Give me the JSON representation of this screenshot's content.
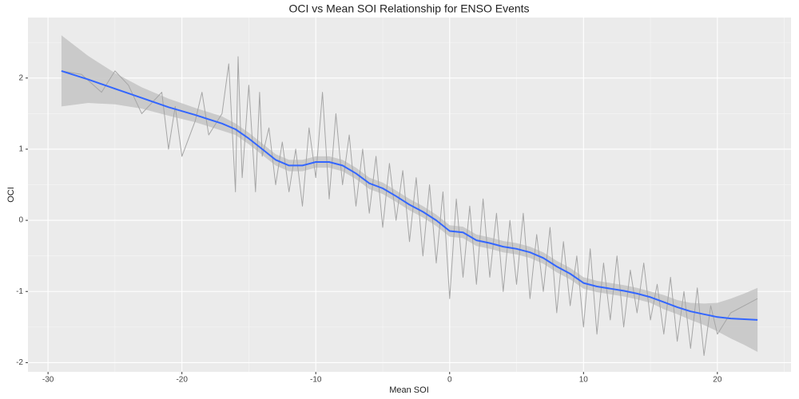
{
  "chart_data": {
    "type": "line",
    "title": "OCI vs Mean SOI Relationship for ENSO Events",
    "x_label": "Mean SOI",
    "y_label": "OCI",
    "xlim": [
      -31.5,
      25.5
    ],
    "ylim": [
      -2.13,
      2.85
    ],
    "xticks": [
      -30,
      -20,
      -10,
      0,
      10,
      20
    ],
    "yticks": [
      -2,
      -1,
      0,
      1,
      2
    ],
    "grid": true,
    "background": "#ebebeb",
    "series": [
      {
        "color": "#a6a6a6",
        "x": [
          -29,
          -27.5,
          -26,
          -25,
          -24,
          -23,
          -21.5,
          -21,
          -20.5,
          -20,
          -19,
          -18.5,
          -18,
          -17,
          -16.5,
          -16,
          -15.8,
          -15.5,
          -15,
          -14.5,
          -14.2,
          -14,
          -13.5,
          -13,
          -12.5,
          -12,
          -11.5,
          -11,
          -10.5,
          -10,
          -9.5,
          -9,
          -8.5,
          -8,
          -7.5,
          -7,
          -6.5,
          -6,
          -5.5,
          -5,
          -4.5,
          -4,
          -3.5,
          -3,
          -2.5,
          -2,
          -1.5,
          -1,
          -0.5,
          0,
          0.5,
          1,
          1.5,
          2,
          2.5,
          3,
          3.5,
          4,
          4.5,
          5,
          5.5,
          6,
          6.5,
          7,
          7.5,
          8,
          8.5,
          9,
          9.5,
          10,
          10.5,
          11,
          11.5,
          12,
          12.5,
          13,
          13.5,
          14,
          14.5,
          15,
          15.5,
          16,
          16.5,
          17,
          17.5,
          18,
          18.5,
          19,
          19.5,
          20,
          21,
          22,
          23
        ],
        "values": [
          2.1,
          2.05,
          1.8,
          2.1,
          1.9,
          1.5,
          1.8,
          1.0,
          1.6,
          0.9,
          1.4,
          1.8,
          1.2,
          1.5,
          2.2,
          0.4,
          2.3,
          0.6,
          1.9,
          0.4,
          1.8,
          0.9,
          1.3,
          0.5,
          1.1,
          0.4,
          1.0,
          0.2,
          1.3,
          0.6,
          1.8,
          0.3,
          1.5,
          0.5,
          1.2,
          0.2,
          1.0,
          0.1,
          0.9,
          -0.1,
          0.8,
          0.0,
          0.7,
          -0.3,
          0.6,
          -0.5,
          0.5,
          -0.6,
          0.4,
          -1.1,
          0.3,
          -0.8,
          0.2,
          -0.9,
          0.3,
          -0.8,
          0.1,
          -1.0,
          0.0,
          -0.9,
          0.1,
          -1.1,
          -0.2,
          -1.0,
          -0.1,
          -1.3,
          -0.3,
          -1.2,
          -0.5,
          -1.5,
          -0.4,
          -1.6,
          -0.6,
          -1.4,
          -0.5,
          -1.5,
          -0.7,
          -1.3,
          -0.6,
          -1.4,
          -0.9,
          -1.6,
          -0.8,
          -1.7,
          -1.0,
          -1.8,
          -0.95,
          -1.9,
          -1.2,
          -1.6,
          -1.3,
          -1.2,
          -1.1
        ]
      },
      {
        "color": "#3366ff",
        "band_color": "#c4c4c4",
        "x": [
          -29,
          -27,
          -25,
          -23,
          -21,
          -19,
          -17,
          -16,
          -15,
          -14,
          -13,
          -12,
          -11,
          -10,
          -9,
          -8,
          -7,
          -6,
          -5,
          -4,
          -3,
          -2,
          -1,
          0,
          1,
          2,
          3,
          4,
          5,
          6,
          7,
          8,
          9,
          10,
          11,
          12,
          13,
          14,
          15,
          16,
          17,
          18,
          19,
          20,
          21,
          22,
          23
        ],
        "values": [
          2.1,
          1.98,
          1.85,
          1.72,
          1.59,
          1.48,
          1.36,
          1.28,
          1.15,
          1.0,
          0.85,
          0.77,
          0.77,
          0.82,
          0.82,
          0.77,
          0.66,
          0.52,
          0.45,
          0.34,
          0.22,
          0.12,
          0,
          -0.15,
          -0.17,
          -0.28,
          -0.32,
          -0.37,
          -0.4,
          -0.45,
          -0.53,
          -0.65,
          -0.75,
          -0.88,
          -0.93,
          -0.96,
          -0.99,
          -1.03,
          -1.08,
          -1.15,
          -1.22,
          -1.28,
          -1.32,
          -1.36,
          -1.38,
          -1.39,
          -1.4
        ],
        "lower": [
          1.6,
          1.65,
          1.63,
          1.57,
          1.47,
          1.38,
          1.26,
          1.2,
          1.07,
          0.92,
          0.77,
          0.69,
          0.69,
          0.74,
          0.74,
          0.69,
          0.58,
          0.44,
          0.37,
          0.26,
          0.14,
          0.04,
          -0.08,
          -0.23,
          -0.25,
          -0.36,
          -0.4,
          -0.45,
          -0.48,
          -0.53,
          -0.61,
          -0.73,
          -0.83,
          -0.96,
          -1.01,
          -1.04,
          -1.07,
          -1.11,
          -1.16,
          -1.25,
          -1.32,
          -1.4,
          -1.47,
          -1.56,
          -1.66,
          -1.75,
          -1.85
        ],
        "upper": [
          2.6,
          2.31,
          2.07,
          1.87,
          1.71,
          1.58,
          1.46,
          1.36,
          1.23,
          1.08,
          0.93,
          0.85,
          0.85,
          0.9,
          0.9,
          0.85,
          0.74,
          0.6,
          0.53,
          0.42,
          0.3,
          0.2,
          0.08,
          -0.07,
          -0.09,
          -0.2,
          -0.24,
          -0.29,
          -0.32,
          -0.37,
          -0.45,
          -0.57,
          -0.67,
          -0.8,
          -0.85,
          -0.88,
          -0.91,
          -0.95,
          -1.0,
          -1.05,
          -1.12,
          -1.16,
          -1.17,
          -1.16,
          -1.1,
          -1.03,
          -0.95
        ]
      }
    ]
  }
}
